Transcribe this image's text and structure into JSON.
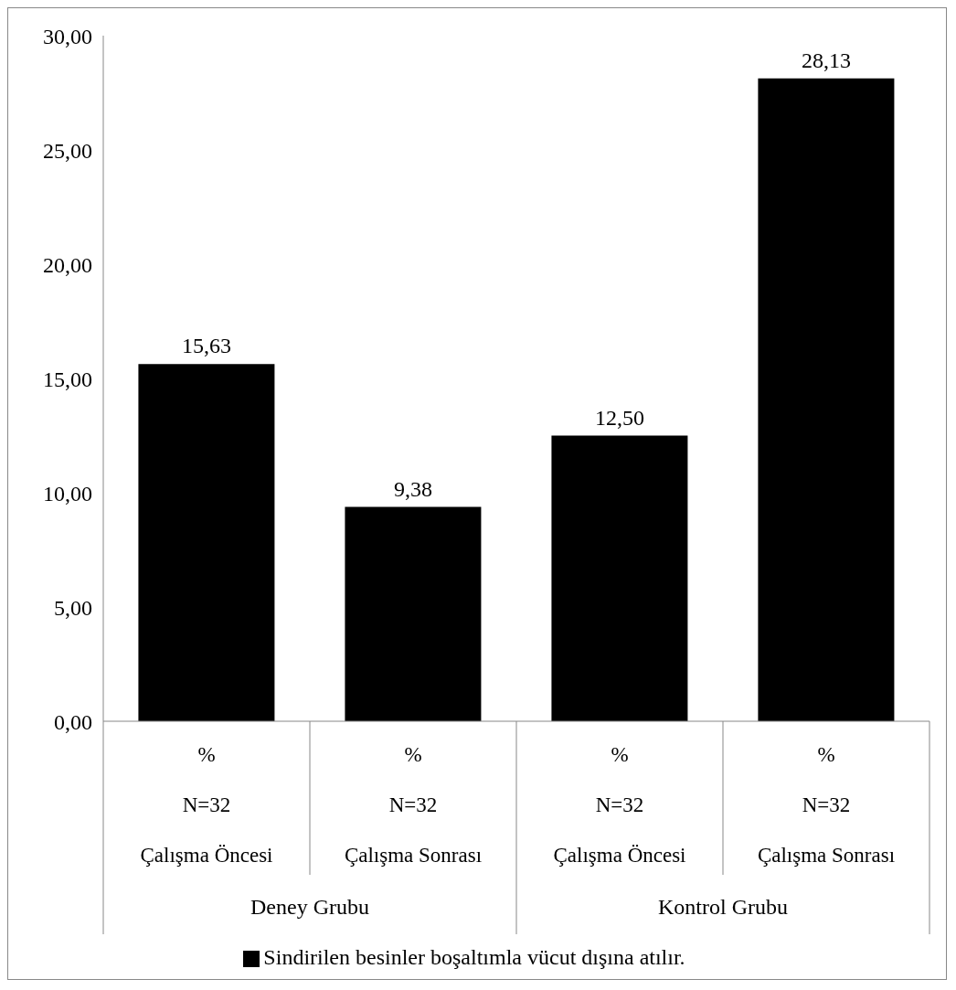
{
  "chart_data": {
    "type": "bar",
    "categories": [
      "%\nN=32\nÇalışma Öncesi",
      "%\nN=32\nÇalışma Sonrası",
      "%\nN=32\nÇalışma Öncesi",
      "%\nN=32\nÇalışma Sonrası"
    ],
    "series": [
      {
        "name": "Sindirilen besinler boşaltımla vücut dışına atılır.",
        "color": "#000000",
        "values": [
          15.63,
          9.38,
          12.5,
          28.13
        ],
        "value_labels": [
          "15,63",
          "9,38",
          "12,50",
          "28,13"
        ]
      }
    ],
    "annotations": [
      "Deney Grubu",
      "Kontrol Grubu"
    ],
    "ylim": [
      0,
      30
    ],
    "yticks": [
      {
        "value": 0,
        "label": "0,00"
      },
      {
        "value": 5,
        "label": "5,00"
      },
      {
        "value": 10,
        "label": "10,00"
      },
      {
        "value": 15,
        "label": "15,00"
      },
      {
        "value": 20,
        "label": "20,00"
      },
      {
        "value": 25,
        "label": "25,00"
      },
      {
        "value": 30,
        "label": "30,00"
      }
    ],
    "legend": "bottom"
  }
}
